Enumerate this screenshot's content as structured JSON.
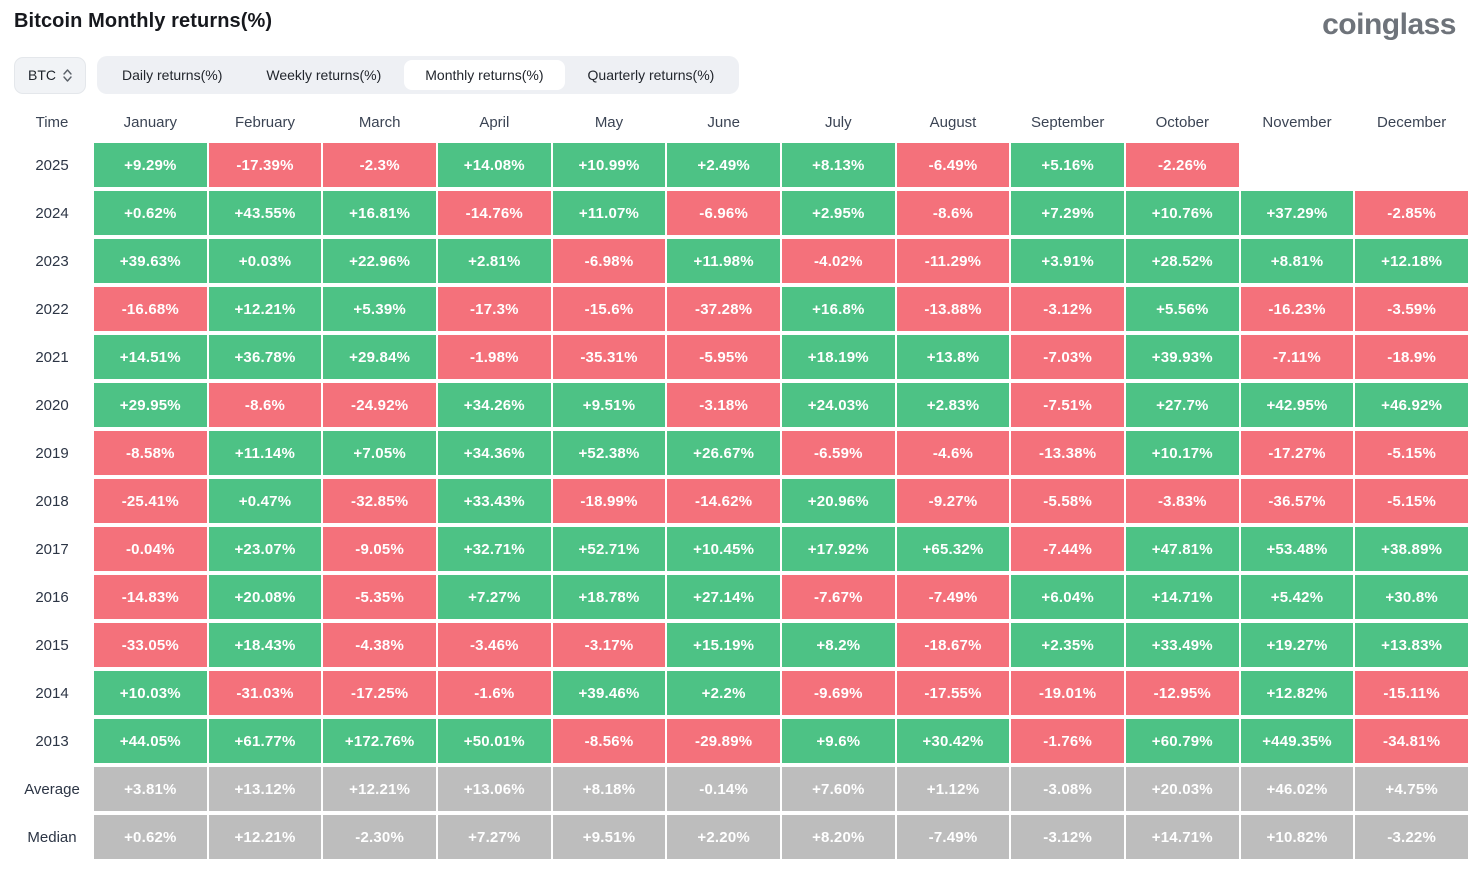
{
  "header": {
    "title": "Bitcoin Monthly returns(%)",
    "logo": "coinglass"
  },
  "controls": {
    "coin_selector": {
      "value": "BTC",
      "icon": "updown-arrows-icon"
    },
    "tabs": [
      {
        "label": "Daily returns(%)",
        "active": false
      },
      {
        "label": "Weekly returns(%)",
        "active": false
      },
      {
        "label": "Monthly returns(%)",
        "active": true
      },
      {
        "label": "Quarterly returns(%)",
        "active": false
      }
    ]
  },
  "table": {
    "time_column_header": "Time",
    "months": [
      "January",
      "February",
      "March",
      "April",
      "May",
      "June",
      "July",
      "August",
      "September",
      "October",
      "November",
      "December"
    ],
    "colors": {
      "positive": "#4DC285",
      "negative": "#F4717B",
      "summary": "#BDBDBD"
    },
    "rows": [
      {
        "label": "2025",
        "type": "year",
        "values": [
          "+9.29%",
          "-17.39%",
          "-2.3%",
          "+14.08%",
          "+10.99%",
          "+2.49%",
          "+8.13%",
          "-6.49%",
          "+5.16%",
          "-2.26%",
          null,
          null
        ]
      },
      {
        "label": "2024",
        "type": "year",
        "values": [
          "+0.62%",
          "+43.55%",
          "+16.81%",
          "-14.76%",
          "+11.07%",
          "-6.96%",
          "+2.95%",
          "-8.6%",
          "+7.29%",
          "+10.76%",
          "+37.29%",
          "-2.85%"
        ]
      },
      {
        "label": "2023",
        "type": "year",
        "values": [
          "+39.63%",
          "+0.03%",
          "+22.96%",
          "+2.81%",
          "-6.98%",
          "+11.98%",
          "-4.02%",
          "-11.29%",
          "+3.91%",
          "+28.52%",
          "+8.81%",
          "+12.18%"
        ]
      },
      {
        "label": "2022",
        "type": "year",
        "values": [
          "-16.68%",
          "+12.21%",
          "+5.39%",
          "-17.3%",
          "-15.6%",
          "-37.28%",
          "+16.8%",
          "-13.88%",
          "-3.12%",
          "+5.56%",
          "-16.23%",
          "-3.59%"
        ]
      },
      {
        "label": "2021",
        "type": "year",
        "values": [
          "+14.51%",
          "+36.78%",
          "+29.84%",
          "-1.98%",
          "-35.31%",
          "-5.95%",
          "+18.19%",
          "+13.8%",
          "-7.03%",
          "+39.93%",
          "-7.11%",
          "-18.9%"
        ]
      },
      {
        "label": "2020",
        "type": "year",
        "values": [
          "+29.95%",
          "-8.6%",
          "-24.92%",
          "+34.26%",
          "+9.51%",
          "-3.18%",
          "+24.03%",
          "+2.83%",
          "-7.51%",
          "+27.7%",
          "+42.95%",
          "+46.92%"
        ]
      },
      {
        "label": "2019",
        "type": "year",
        "values": [
          "-8.58%",
          "+11.14%",
          "+7.05%",
          "+34.36%",
          "+52.38%",
          "+26.67%",
          "-6.59%",
          "-4.6%",
          "-13.38%",
          "+10.17%",
          "-17.27%",
          "-5.15%"
        ]
      },
      {
        "label": "2018",
        "type": "year",
        "values": [
          "-25.41%",
          "+0.47%",
          "-32.85%",
          "+33.43%",
          "-18.99%",
          "-14.62%",
          "+20.96%",
          "-9.27%",
          "-5.58%",
          "-3.83%",
          "-36.57%",
          "-5.15%"
        ]
      },
      {
        "label": "2017",
        "type": "year",
        "values": [
          "-0.04%",
          "+23.07%",
          "-9.05%",
          "+32.71%",
          "+52.71%",
          "+10.45%",
          "+17.92%",
          "+65.32%",
          "-7.44%",
          "+47.81%",
          "+53.48%",
          "+38.89%"
        ]
      },
      {
        "label": "2016",
        "type": "year",
        "values": [
          "-14.83%",
          "+20.08%",
          "-5.35%",
          "+7.27%",
          "+18.78%",
          "+27.14%",
          "-7.67%",
          "-7.49%",
          "+6.04%",
          "+14.71%",
          "+5.42%",
          "+30.8%"
        ]
      },
      {
        "label": "2015",
        "type": "year",
        "values": [
          "-33.05%",
          "+18.43%",
          "-4.38%",
          "-3.46%",
          "-3.17%",
          "+15.19%",
          "+8.2%",
          "-18.67%",
          "+2.35%",
          "+33.49%",
          "+19.27%",
          "+13.83%"
        ]
      },
      {
        "label": "2014",
        "type": "year",
        "values": [
          "+10.03%",
          "-31.03%",
          "-17.25%",
          "-1.6%",
          "+39.46%",
          "+2.2%",
          "-9.69%",
          "-17.55%",
          "-19.01%",
          "-12.95%",
          "+12.82%",
          "-15.11%"
        ]
      },
      {
        "label": "2013",
        "type": "year",
        "values": [
          "+44.05%",
          "+61.77%",
          "+172.76%",
          "+50.01%",
          "-8.56%",
          "-29.89%",
          "+9.6%",
          "+30.42%",
          "-1.76%",
          "+60.79%",
          "+449.35%",
          "-34.81%"
        ]
      },
      {
        "label": "Average",
        "type": "summary",
        "values": [
          "+3.81%",
          "+13.12%",
          "+12.21%",
          "+13.06%",
          "+8.18%",
          "-0.14%",
          "+7.60%",
          "+1.12%",
          "-3.08%",
          "+20.03%",
          "+46.02%",
          "+4.75%"
        ]
      },
      {
        "label": "Median",
        "type": "summary",
        "values": [
          "+0.62%",
          "+12.21%",
          "-2.30%",
          "+7.27%",
          "+9.51%",
          "+2.20%",
          "+8.20%",
          "-7.49%",
          "-3.12%",
          "+14.71%",
          "+10.82%",
          "-3.22%"
        ]
      }
    ]
  }
}
